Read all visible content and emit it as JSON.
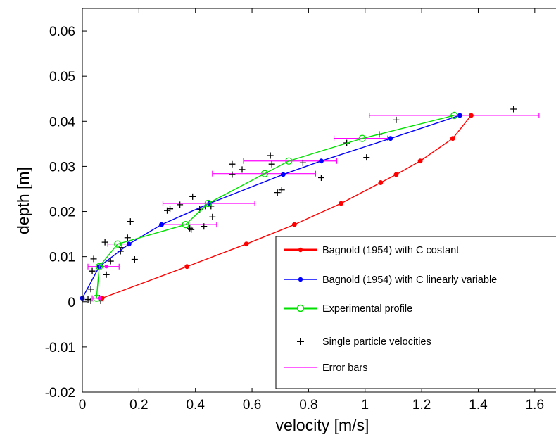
{
  "chart_data": {
    "type": "line",
    "xlabel": "velocity [m/s]",
    "ylabel": "depth [m]",
    "xlim": [
      0,
      1.7
    ],
    "ylim": [
      -0.02,
      0.065
    ],
    "xticks": [
      0,
      0.2,
      0.4,
      0.6,
      0.8,
      1,
      1.2,
      1.4,
      1.6
    ],
    "xtick_labels": [
      "0",
      "0.2",
      "0.4",
      "0.6",
      "0.8",
      "1",
      "1.2",
      "1.4",
      "1.6"
    ],
    "yticks": [
      -0.02,
      -0.01,
      0,
      0.01,
      0.02,
      0.03,
      0.04,
      0.05,
      0.06
    ],
    "ytick_labels": [
      "-0.02",
      "-0.01",
      "0",
      "0.01",
      "0.02",
      "0.03",
      "0.04",
      "0.05",
      "0.06"
    ],
    "grid": false,
    "legend_position": "bottom-right",
    "series": [
      {
        "name": "Bagnold (1954) with C costant",
        "color": "#ff0000",
        "marker": "dot",
        "x": [
          0.07,
          0.37,
          0.58,
          0.75,
          0.915,
          1.055,
          1.11,
          1.195,
          1.31,
          1.375
        ],
        "y": [
          0.0008,
          0.0078,
          0.0128,
          0.0171,
          0.0218,
          0.0264,
          0.0282,
          0.0312,
          0.0362,
          0.0413
        ]
      },
      {
        "name": "Bagnold (1954) with C linearly variable",
        "color": "#0000ff",
        "marker": "dot",
        "x": [
          0.0,
          0.06,
          0.165,
          0.28,
          0.45,
          0.71,
          0.845,
          1.09,
          1.335
        ],
        "y": [
          0.0008,
          0.0078,
          0.0128,
          0.0171,
          0.0218,
          0.0282,
          0.0312,
          0.0362,
          0.0413
        ]
      },
      {
        "name": "Experimental profile",
        "color": "#00e000",
        "marker": "circle",
        "x": [
          0.05,
          0.06,
          0.125,
          0.365,
          0.445,
          0.645,
          0.73,
          0.99,
          1.315
        ],
        "y": [
          0.0008,
          0.0078,
          0.0128,
          0.0171,
          0.0218,
          0.0284,
          0.0312,
          0.0362,
          0.0413
        ]
      },
      {
        "name": "Single particle velocities",
        "color": "#000000",
        "marker": "plus",
        "x": [
          0.02,
          0.03,
          0.035,
          0.04,
          0.03,
          0.06,
          0.065,
          0.08,
          0.085,
          0.1,
          0.135,
          0.14,
          0.16,
          0.17,
          0.185,
          0.3,
          0.31,
          0.345,
          0.38,
          0.385,
          0.39,
          0.415,
          0.43,
          0.435,
          0.46,
          0.455,
          0.53,
          0.53,
          0.565,
          0.665,
          0.67,
          0.69,
          0.705,
          0.78,
          0.845,
          0.935,
          1.005,
          1.05,
          1.11,
          1.525
        ],
        "y": [
          0.0005,
          0.0028,
          0.0068,
          0.0095,
          0.0002,
          0.0008,
          0.0002,
          0.0132,
          0.006,
          0.009,
          0.0112,
          0.012,
          0.0142,
          0.0178,
          0.0094,
          0.0202,
          0.0206,
          0.0215,
          0.0163,
          0.016,
          0.0233,
          0.0205,
          0.0167,
          0.0212,
          0.0188,
          0.0212,
          0.0305,
          0.0282,
          0.0293,
          0.0324,
          0.0305,
          0.0242,
          0.0248,
          0.0308,
          0.0275,
          0.0352,
          0.032,
          0.0371,
          0.0403,
          0.0427
        ]
      },
      {
        "name": "Error bars",
        "color": "#ff00ff",
        "marker": "hbar",
        "y": [
          0.0008,
          0.0078,
          0.0128,
          0.0171,
          0.0218,
          0.0284,
          0.0312,
          0.0362,
          0.0413
        ],
        "x_low": [
          0.035,
          0.02,
          0.09,
          0.285,
          0.285,
          0.46,
          0.57,
          0.89,
          1.015
        ],
        "x_high": [
          0.065,
          0.13,
          0.165,
          0.475,
          0.61,
          0.825,
          0.9,
          1.08,
          1.615
        ]
      }
    ]
  }
}
